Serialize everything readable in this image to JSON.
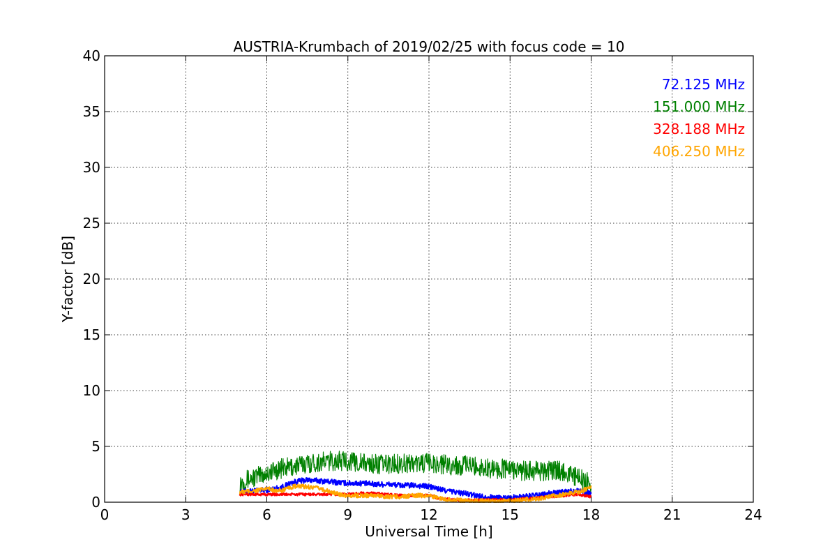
{
  "chart_data": {
    "type": "line",
    "title": "AUSTRIA-Krumbach of 2019/02/25 with focus code = 10",
    "xlabel": "Universal Time [h]",
    "ylabel": "Y-factor [dB]",
    "xlim": [
      0,
      24
    ],
    "ylim": [
      0,
      40
    ],
    "xticks": [
      0,
      3,
      6,
      9,
      12,
      15,
      18,
      21,
      24
    ],
    "yticks": [
      0,
      5,
      10,
      15,
      20,
      25,
      30,
      35,
      40
    ],
    "grid": true,
    "legend_position": "top-right",
    "series": [
      {
        "name": "72.125 MHz",
        "color": "#0000ff",
        "x": [
          5.0,
          5.5,
          6.0,
          6.5,
          7.0,
          7.5,
          8.0,
          8.5,
          9.0,
          9.5,
          10.0,
          10.5,
          11.0,
          11.5,
          12.0,
          12.5,
          13.0,
          13.5,
          14.0,
          14.5,
          15.0,
          15.5,
          16.0,
          16.5,
          17.0,
          17.5,
          18.0
        ],
        "y": [
          0.9,
          1.0,
          1.1,
          1.3,
          1.8,
          2.0,
          1.9,
          1.8,
          1.7,
          1.7,
          1.6,
          1.6,
          1.5,
          1.5,
          1.4,
          1.1,
          0.9,
          0.7,
          0.5,
          0.4,
          0.4,
          0.5,
          0.6,
          0.8,
          0.9,
          1.1,
          0.8
        ]
      },
      {
        "name": "151.000 MHz",
        "color": "#008000",
        "x": [
          5.0,
          5.5,
          6.0,
          6.5,
          7.0,
          7.5,
          8.0,
          8.5,
          9.0,
          9.5,
          10.0,
          10.5,
          11.0,
          11.5,
          12.0,
          12.5,
          13.0,
          13.5,
          14.0,
          14.5,
          15.0,
          15.5,
          16.0,
          16.5,
          17.0,
          17.5,
          18.0
        ],
        "y": [
          1.8,
          2.2,
          2.6,
          3.0,
          3.2,
          3.5,
          3.6,
          3.7,
          3.7,
          3.5,
          3.4,
          3.4,
          3.5,
          3.5,
          3.5,
          3.4,
          3.3,
          3.3,
          3.1,
          3.0,
          3.0,
          2.8,
          2.8,
          2.8,
          2.8,
          2.2,
          1.6
        ]
      },
      {
        "name": "328.188 MHz",
        "color": "#ff0000",
        "x": [
          5.0,
          5.5,
          6.0,
          6.5,
          7.0,
          7.5,
          8.0,
          8.5,
          9.0,
          9.5,
          10.0,
          10.5,
          11.0,
          11.5,
          12.0,
          12.5,
          13.0,
          13.5,
          14.0,
          14.5,
          15.0,
          15.5,
          16.0,
          16.5,
          17.0,
          17.5,
          18.0
        ],
        "y": [
          0.7,
          0.7,
          0.7,
          0.7,
          0.7,
          0.7,
          0.7,
          0.7,
          0.7,
          0.8,
          0.8,
          0.7,
          0.6,
          0.6,
          0.6,
          0.3,
          0.2,
          0.2,
          0.2,
          0.2,
          0.2,
          0.3,
          0.4,
          0.5,
          0.6,
          0.7,
          0.5
        ]
      },
      {
        "name": "406.250 MHz",
        "color": "#ffa500",
        "x": [
          5.0,
          5.5,
          6.0,
          6.5,
          7.0,
          7.5,
          8.0,
          8.5,
          9.0,
          9.5,
          10.0,
          10.5,
          11.0,
          11.5,
          12.0,
          12.5,
          13.0,
          13.5,
          14.0,
          14.5,
          15.0,
          15.5,
          16.0,
          16.5,
          17.0,
          17.5,
          18.0
        ],
        "y": [
          0.9,
          1.0,
          1.2,
          1.0,
          1.4,
          1.4,
          1.2,
          0.8,
          0.6,
          0.6,
          0.6,
          0.5,
          0.5,
          0.6,
          0.6,
          0.3,
          0.2,
          0.1,
          0.1,
          0.1,
          0.1,
          0.2,
          0.3,
          0.5,
          0.7,
          0.9,
          1.3
        ]
      }
    ]
  }
}
